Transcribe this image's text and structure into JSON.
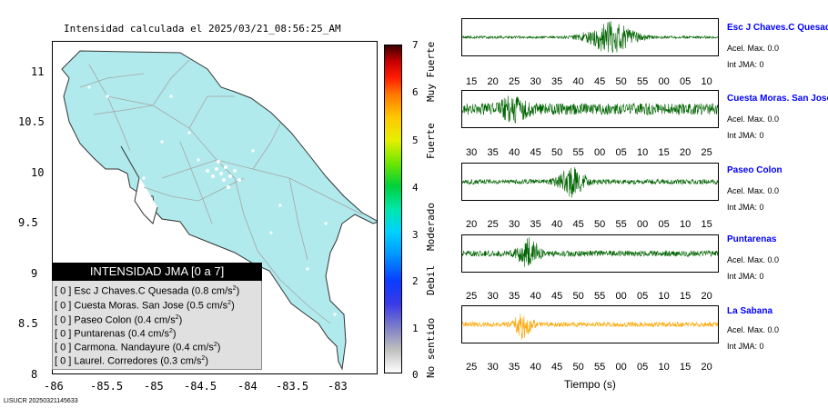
{
  "map": {
    "title": "Intensidad calculada el 2025/03/21_08:56:25_AM",
    "footer": "LISUCR 20250321145633",
    "x_ticks": [
      "-86",
      "-85.5",
      "-85",
      "-84.5",
      "-84",
      "-83.5",
      "-83"
    ],
    "y_ticks": [
      "11",
      "10.5",
      "10",
      "9.5",
      "9",
      "8.5",
      "8"
    ],
    "xlim": [
      -86,
      -82.7
    ],
    "ylim": [
      8,
      11.3
    ],
    "land_color": "#b0eaec",
    "legend": {
      "header": "INTENSIDAD JMA [0 a 7]",
      "rows": [
        {
          "int": "[ 0 ]",
          "name": "Esc J Chaves.C Quesada",
          "acc": "(0.8 cm/s",
          "unit_sup": "2",
          "close": ")"
        },
        {
          "int": "[ 0 ]",
          "name": "Cuesta Moras. San Jose",
          "acc": "(0.5 cm/s",
          "unit_sup": "2",
          "close": ")"
        },
        {
          "int": "[ 0 ]",
          "name": "Paseo Colon",
          "acc": "(0.4 cm/s",
          "unit_sup": "2",
          "close": ")"
        },
        {
          "int": "[ 0 ]",
          "name": "Puntarenas",
          "acc": "(0.4 cm/s",
          "unit_sup": "2",
          "close": ")"
        },
        {
          "int": "[ 0 ]",
          "name": "Carmona. Nandayure",
          "acc": "(0.4 cm/s",
          "unit_sup": "2",
          "close": ")"
        },
        {
          "int": "[ 0 ]",
          "name": "Laurel. Corredores",
          "acc": "(0.3 cm/s",
          "unit_sup": "2",
          "close": ")"
        }
      ]
    }
  },
  "colorbar": {
    "ticks": [
      "7",
      "6",
      "5",
      "4",
      "3",
      "2",
      "1",
      "0"
    ],
    "labels": [
      "Muy Fuerte",
      "Fuerte",
      "Moderado",
      "Debil",
      "No sentido"
    ]
  },
  "waveforms": {
    "xlabel": "Tiempo (s)",
    "stations": [
      {
        "name": "Esc J Chaves.C Quesada",
        "acel": "Acel. Max. 0.0",
        "int": "Int JMA: 0",
        "color": "#006400",
        "ticks": [
          "15",
          "20",
          "25",
          "30",
          "35",
          "40",
          "45",
          "50",
          "55",
          "00",
          "05",
          "10"
        ],
        "burst": [
          0.58,
          0.09
        ],
        "noise": 0.08
      },
      {
        "name": "Cuesta Moras. San Jose",
        "acel": "Acel. Max. 0.0",
        "int": "Int JMA: 0",
        "color": "#006400",
        "ticks": [
          "30",
          "35",
          "40",
          "45",
          "50",
          "55",
          "00",
          "05",
          "10",
          "15",
          "20",
          "25"
        ],
        "burst": [
          0.2,
          0.05
        ],
        "noise": 0.35
      },
      {
        "name": "Paseo Colon",
        "acel": "Acel. Max. 0.0",
        "int": "Int JMA: 0",
        "color": "#006400",
        "ticks": [
          "20",
          "25",
          "30",
          "35",
          "40",
          "45",
          "50",
          "55",
          "00",
          "05",
          "10",
          "15"
        ],
        "burst": [
          0.43,
          0.05
        ],
        "noise": 0.15
      },
      {
        "name": "Puntarenas",
        "acel": "Acel. Max. 0.0",
        "int": "Int JMA: 0",
        "color": "#006400",
        "ticks": [
          "25",
          "30",
          "35",
          "40",
          "45",
          "50",
          "55",
          "00",
          "05",
          "10",
          "15",
          "20"
        ],
        "burst": [
          0.26,
          0.04
        ],
        "noise": 0.18
      },
      {
        "name": "La Sabana",
        "acel": "Acel. Max. 0.0",
        "int": "Int JMA: 0",
        "color": "#ffa500",
        "ticks": [
          "25",
          "30",
          "35",
          "40",
          "45",
          "50",
          "55",
          "00",
          "05",
          "10",
          "15",
          "20"
        ],
        "burst": [
          0.24,
          0.03
        ],
        "noise": 0.15
      }
    ]
  }
}
